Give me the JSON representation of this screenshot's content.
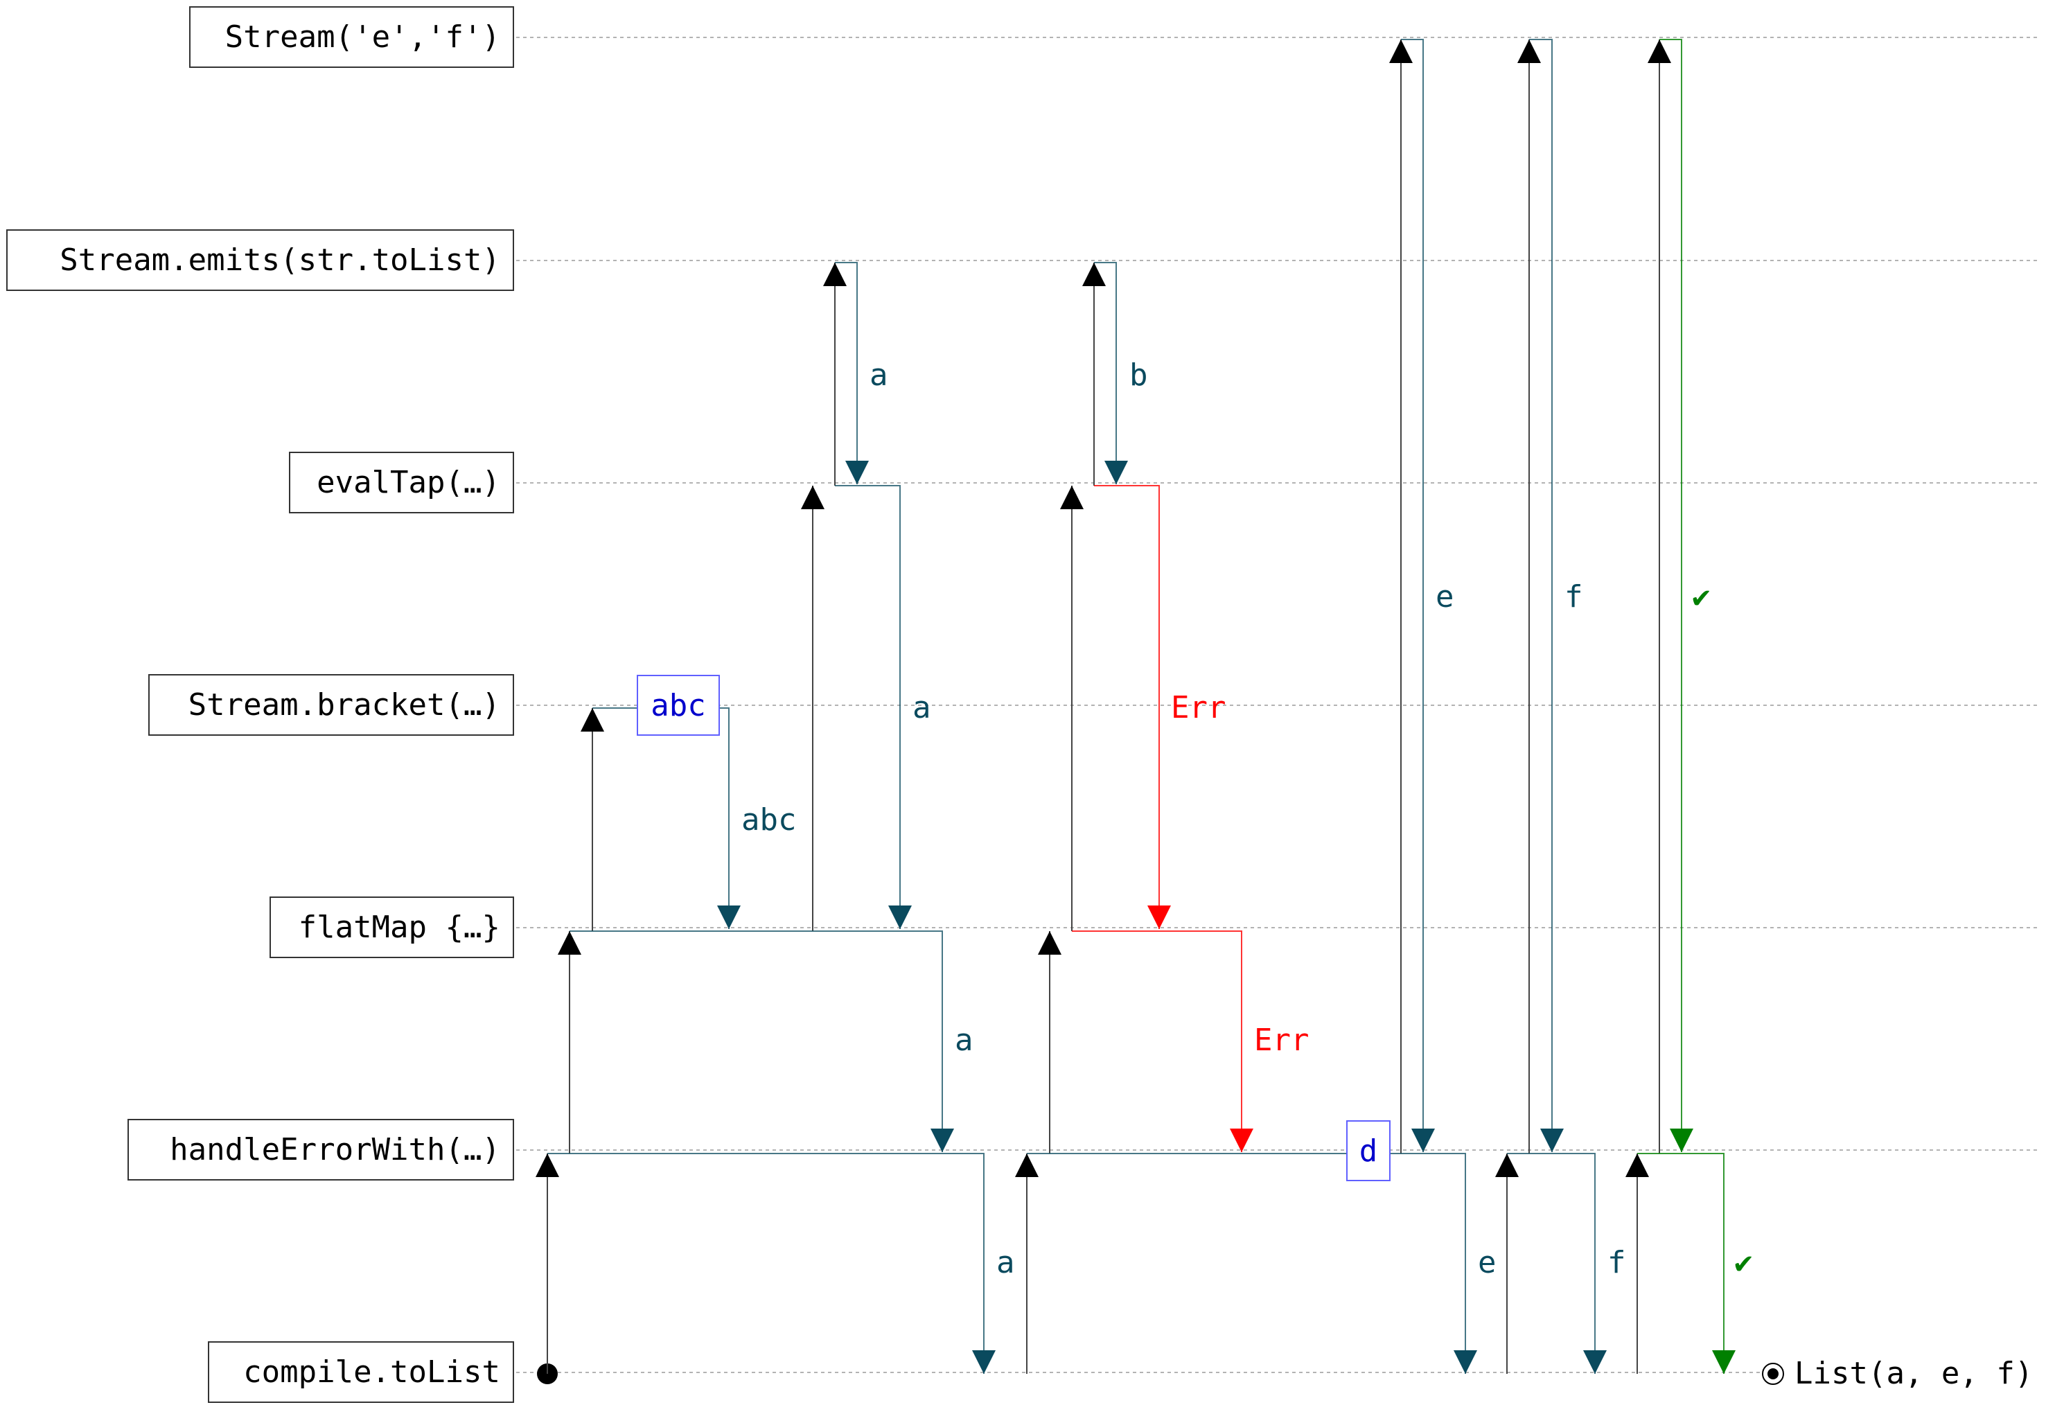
{
  "colors": {
    "value": "#0a4a5e",
    "error": "#ff0000",
    "done": "#008000",
    "pull": "#000000",
    "inserted": "#0000cc",
    "grid": "#b3b3b3"
  },
  "lanes": [
    {
      "label": "Stream('e','f')"
    },
    {
      "label": "Stream.emits(str.toList)"
    },
    {
      "label": "evalTap(…)"
    },
    {
      "label": "Stream.bracket(…)"
    },
    {
      "label": "flatMap {…}"
    },
    {
      "label": "handleErrorWith(…)"
    },
    {
      "label": "compile.toList"
    }
  ],
  "flow_labels": {
    "emits_a": "a",
    "emits_b": "b",
    "bracket_abc": "abc",
    "evaltap_a": "a",
    "evaltap_err": "Err",
    "flatmap_a": "a",
    "flatmap_err": "Err",
    "handle_a": "a",
    "stream_e": "e",
    "stream_f": "f",
    "stream_done": "✔",
    "handle_e": "e",
    "handle_f": "f",
    "handle_done": "✔"
  },
  "boxes": {
    "bracket_value": "abc",
    "handler_value": "d"
  },
  "result": "List(a, e, f)"
}
